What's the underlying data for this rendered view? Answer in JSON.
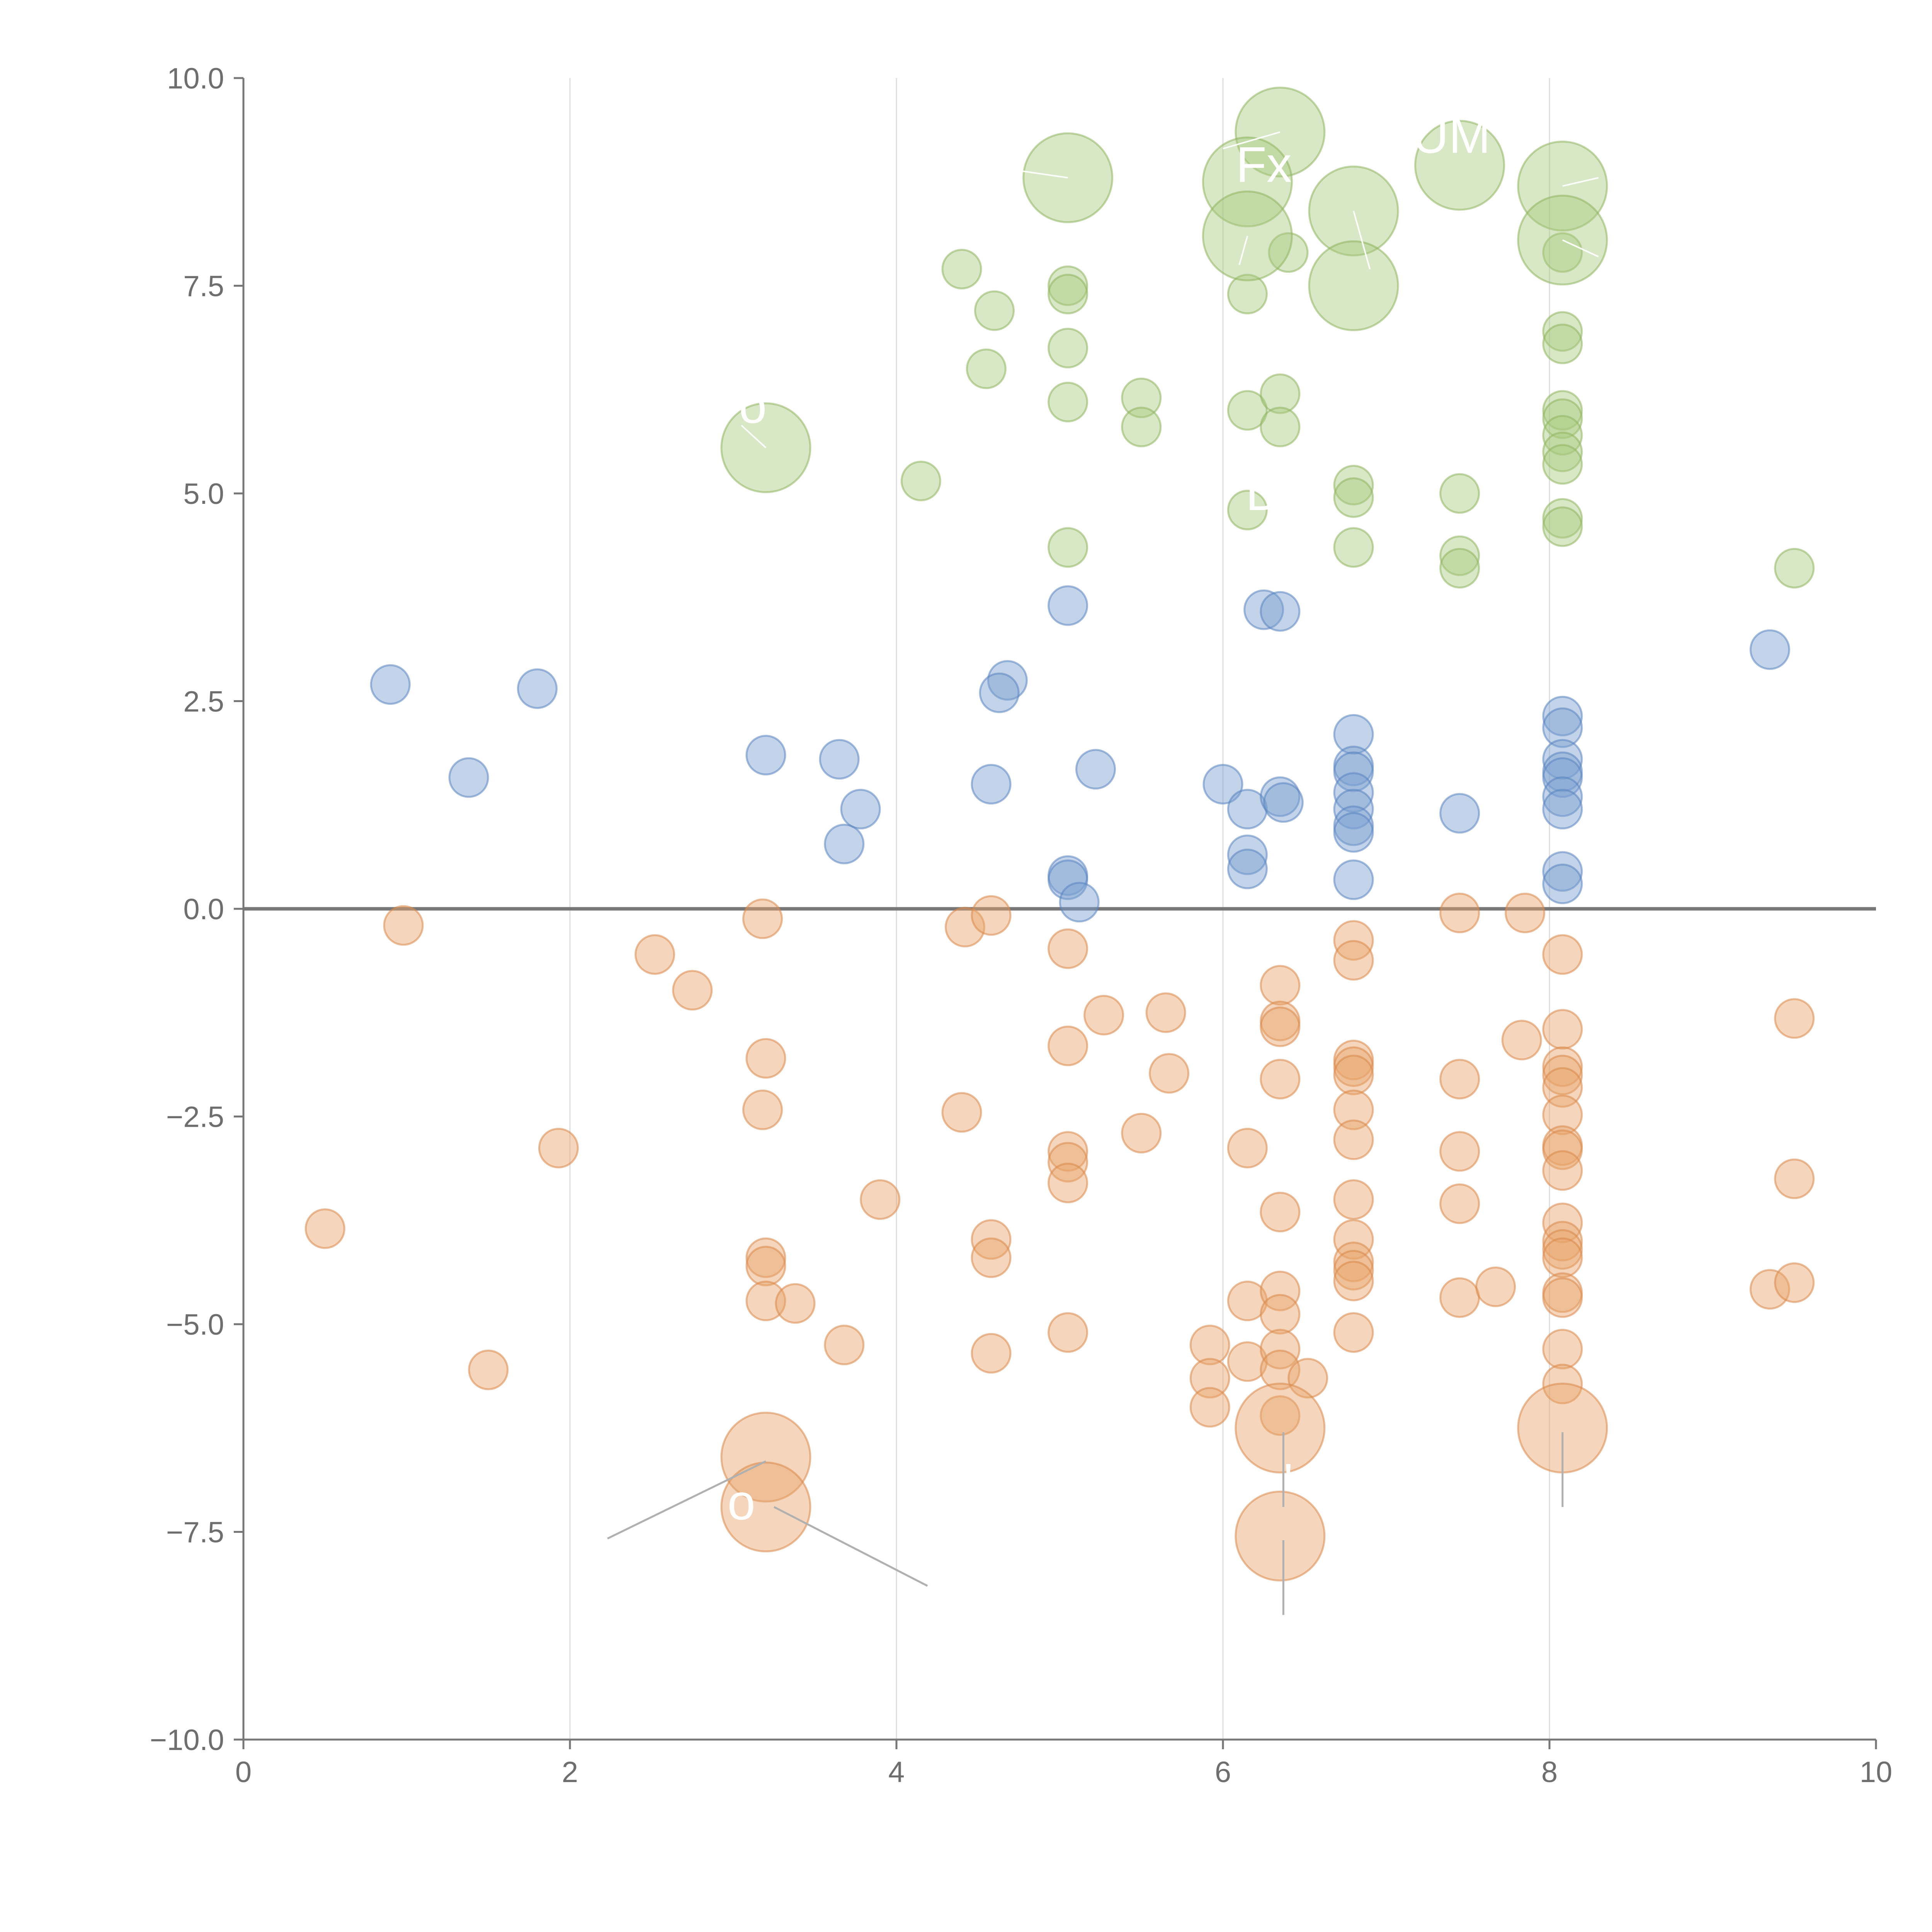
{
  "chart_data": {
    "type": "scatter",
    "title": "",
    "xlabel": "",
    "ylabel": "",
    "xlim": [
      0,
      10
    ],
    "ylim": [
      -10,
      10
    ],
    "x_ticks": [
      0,
      2,
      4,
      6,
      8,
      10
    ],
    "y_ticks": [
      10,
      7.5,
      5,
      2.5,
      0,
      -2.5,
      -5,
      -7.5,
      -10
    ],
    "x_tick_labels": [
      "0",
      "2",
      "4",
      "6",
      "8",
      "10"
    ],
    "y_tick_labels": [
      "10.0",
      "7.5",
      "5.0",
      "2.5",
      "0.0",
      "−2.5",
      "−5.0",
      "−7.5",
      "−10.0"
    ],
    "vertical_gridlines_at": [
      2,
      4,
      6,
      8
    ],
    "horizontal_reference_line_at": 0,
    "colors": {
      "green": "#a9c97e",
      "green_stroke": "#8fb461",
      "blue": "#7b9fd0",
      "blue_stroke": "#5a83bf",
      "orange": "#e9a56b",
      "orange_stroke": "#d9894a",
      "axis": "#777777",
      "grid": "#dddddd",
      "tick_text": "#6e6e6e"
    },
    "series": [
      {
        "name": "green",
        "color_key": "green",
        "points": [
          [
            4.4,
            7.7,
            1
          ],
          [
            4.6,
            7.2,
            1
          ],
          [
            4.55,
            6.5,
            1
          ],
          [
            5.05,
            7.5,
            1
          ],
          [
            5.05,
            7.4,
            1
          ],
          [
            5.05,
            6.75,
            1
          ],
          [
            5.05,
            6.1,
            1
          ],
          [
            5.5,
            6.15,
            1
          ],
          [
            5.5,
            5.8,
            1
          ],
          [
            4.15,
            5.15,
            1
          ],
          [
            5.05,
            4.35,
            1
          ],
          [
            6.15,
            7.4,
            1
          ],
          [
            6.4,
            7.9,
            1
          ],
          [
            6.15,
            6.0,
            1
          ],
          [
            6.35,
            6.2,
            1
          ],
          [
            6.35,
            5.8,
            1
          ],
          [
            6.15,
            4.8,
            1
          ],
          [
            6.8,
            5.1,
            1
          ],
          [
            6.8,
            4.95,
            1
          ],
          [
            6.8,
            4.35,
            1
          ],
          [
            7.45,
            5.0,
            1
          ],
          [
            7.45,
            4.25,
            1
          ],
          [
            7.45,
            4.1,
            1
          ],
          [
            8.08,
            7.9,
            1
          ],
          [
            8.08,
            6.95,
            1
          ],
          [
            8.08,
            6.8,
            1
          ],
          [
            8.08,
            6.0,
            1
          ],
          [
            8.08,
            5.9,
            1
          ],
          [
            8.08,
            5.7,
            1
          ],
          [
            8.08,
            5.5,
            1
          ],
          [
            8.08,
            5.35,
            1
          ],
          [
            8.08,
            4.7,
            1
          ],
          [
            8.08,
            4.6,
            1
          ],
          [
            9.5,
            4.1,
            1
          ],
          [
            3.2,
            5.55,
            2.3
          ],
          [
            5.05,
            8.8,
            2.3
          ],
          [
            6.35,
            9.35,
            2.3
          ],
          [
            6.15,
            8.75,
            2.3
          ],
          [
            6.15,
            8.1,
            2.3
          ],
          [
            6.8,
            8.4,
            2.3
          ],
          [
            6.8,
            7.5,
            2.3
          ],
          [
            7.45,
            8.95,
            2.3
          ],
          [
            8.08,
            8.7,
            2.3
          ],
          [
            8.08,
            8.05,
            2.3
          ]
        ]
      },
      {
        "name": "blue",
        "color_key": "blue",
        "points": [
          [
            0.9,
            2.7,
            1
          ],
          [
            1.8,
            2.65,
            1
          ],
          [
            1.38,
            1.58,
            1
          ],
          [
            3.2,
            1.85,
            1
          ],
          [
            3.65,
            1.8,
            1
          ],
          [
            3.78,
            1.2,
            1
          ],
          [
            3.68,
            0.78,
            1
          ],
          [
            4.58,
            1.5,
            1
          ],
          [
            4.68,
            2.75,
            1
          ],
          [
            4.63,
            2.6,
            1
          ],
          [
            5.05,
            3.65,
            1
          ],
          [
            5.05,
            0.4,
            1
          ],
          [
            5.05,
            0.35,
            1
          ],
          [
            5.12,
            0.08,
            1
          ],
          [
            5.22,
            1.68,
            1
          ],
          [
            6.0,
            1.5,
            1
          ],
          [
            6.15,
            1.2,
            1
          ],
          [
            6.15,
            0.65,
            1
          ],
          [
            6.15,
            0.48,
            1
          ],
          [
            6.25,
            3.6,
            1
          ],
          [
            6.35,
            3.58,
            1
          ],
          [
            6.35,
            1.35,
            1
          ],
          [
            6.37,
            1.28,
            1
          ],
          [
            6.8,
            2.1,
            1
          ],
          [
            6.8,
            1.72,
            1
          ],
          [
            6.8,
            1.65,
            1
          ],
          [
            6.8,
            1.4,
            1
          ],
          [
            6.8,
            1.2,
            1
          ],
          [
            6.8,
            1.0,
            1
          ],
          [
            6.8,
            0.92,
            1
          ],
          [
            6.8,
            0.35,
            1
          ],
          [
            7.45,
            1.15,
            1
          ],
          [
            8.08,
            2.32,
            1
          ],
          [
            8.08,
            2.18,
            1
          ],
          [
            8.08,
            1.8,
            1
          ],
          [
            8.08,
            1.65,
            1
          ],
          [
            8.08,
            1.58,
            1
          ],
          [
            8.08,
            1.35,
            1
          ],
          [
            8.08,
            1.2,
            1
          ],
          [
            8.08,
            0.45,
            1
          ],
          [
            8.08,
            0.3,
            1
          ],
          [
            9.35,
            3.12,
            1
          ]
        ]
      },
      {
        "name": "orange",
        "color_key": "orange",
        "points": [
          [
            0.98,
            -0.2,
            1
          ],
          [
            0.5,
            -3.85,
            1
          ],
          [
            1.5,
            -5.55,
            1
          ],
          [
            1.93,
            -2.88,
            1
          ],
          [
            2.52,
            -0.55,
            1
          ],
          [
            2.75,
            -0.98,
            1
          ],
          [
            3.18,
            -0.12,
            1
          ],
          [
            3.2,
            -1.8,
            1
          ],
          [
            3.18,
            -2.42,
            1
          ],
          [
            3.2,
            -4.2,
            1
          ],
          [
            3.2,
            -4.3,
            1
          ],
          [
            3.2,
            -4.72,
            1
          ],
          [
            3.38,
            -4.75,
            1
          ],
          [
            3.68,
            -5.25,
            1
          ],
          [
            3.9,
            -3.5,
            1
          ],
          [
            4.42,
            -0.22,
            1
          ],
          [
            4.58,
            -0.08,
            1
          ],
          [
            4.4,
            -2.45,
            1
          ],
          [
            4.58,
            -3.98,
            1
          ],
          [
            4.58,
            -4.2,
            1
          ],
          [
            4.58,
            -5.35,
            1
          ],
          [
            5.05,
            -0.48,
            1
          ],
          [
            5.05,
            -1.65,
            1
          ],
          [
            5.05,
            -2.92,
            1
          ],
          [
            5.05,
            -3.05,
            1
          ],
          [
            5.05,
            -3.3,
            1
          ],
          [
            5.05,
            -5.1,
            1
          ],
          [
            5.27,
            -1.28,
            1
          ],
          [
            5.5,
            -2.7,
            1
          ],
          [
            5.65,
            -1.25,
            1
          ],
          [
            5.67,
            -1.98,
            1
          ],
          [
            5.92,
            -5.25,
            1
          ],
          [
            5.92,
            -5.65,
            1
          ],
          [
            5.92,
            -6.0,
            1
          ],
          [
            6.15,
            -2.88,
            1
          ],
          [
            6.15,
            -4.72,
            1
          ],
          [
            6.15,
            -5.45,
            1
          ],
          [
            6.35,
            -0.92,
            1
          ],
          [
            6.35,
            -1.35,
            1
          ],
          [
            6.35,
            -1.42,
            1
          ],
          [
            6.35,
            -2.05,
            1
          ],
          [
            6.35,
            -3.65,
            1
          ],
          [
            6.35,
            -4.6,
            1
          ],
          [
            6.35,
            -4.88,
            1
          ],
          [
            6.35,
            -5.3,
            1
          ],
          [
            6.35,
            -5.55,
            1
          ],
          [
            6.35,
            -6.1,
            1
          ],
          [
            6.52,
            -5.65,
            1
          ],
          [
            6.8,
            -0.38,
            1
          ],
          [
            6.8,
            -0.62,
            1
          ],
          [
            6.8,
            -1.82,
            1
          ],
          [
            6.8,
            -1.9,
            1
          ],
          [
            6.8,
            -2.0,
            1
          ],
          [
            6.8,
            -2.42,
            1
          ],
          [
            6.8,
            -2.78,
            1
          ],
          [
            6.8,
            -3.5,
            1
          ],
          [
            6.8,
            -3.98,
            1
          ],
          [
            6.8,
            -4.25,
            1
          ],
          [
            6.8,
            -4.35,
            1
          ],
          [
            6.8,
            -4.48,
            1
          ],
          [
            6.8,
            -5.1,
            1
          ],
          [
            7.45,
            -0.05,
            1
          ],
          [
            7.45,
            -2.05,
            1
          ],
          [
            7.45,
            -2.92,
            1
          ],
          [
            7.45,
            -3.55,
            1
          ],
          [
            7.45,
            -4.68,
            1
          ],
          [
            7.67,
            -4.55,
            1
          ],
          [
            7.85,
            -0.05,
            1
          ],
          [
            7.83,
            -1.58,
            1
          ],
          [
            8.08,
            -0.55,
            1
          ],
          [
            8.08,
            -1.45,
            1
          ],
          [
            8.08,
            -1.9,
            1
          ],
          [
            8.08,
            -2.0,
            1
          ],
          [
            8.08,
            -2.15,
            1
          ],
          [
            8.08,
            -2.48,
            1
          ],
          [
            8.08,
            -2.85,
            1
          ],
          [
            8.08,
            -2.9,
            1
          ],
          [
            8.08,
            -3.15,
            1
          ],
          [
            8.08,
            -3.78,
            1
          ],
          [
            8.08,
            -4.0,
            1
          ],
          [
            8.08,
            -4.1,
            1
          ],
          [
            8.08,
            -4.2,
            1
          ],
          [
            8.08,
            -4.62,
            1
          ],
          [
            8.08,
            -4.68,
            1
          ],
          [
            8.08,
            -5.3,
            1
          ],
          [
            8.08,
            -5.72,
            1
          ],
          [
            9.5,
            -1.32,
            1
          ],
          [
            9.5,
            -3.25,
            1
          ],
          [
            9.35,
            -4.58,
            1
          ],
          [
            9.5,
            -4.5,
            1
          ],
          [
            3.2,
            -6.6,
            2.3
          ],
          [
            3.2,
            -7.2,
            2.3
          ],
          [
            6.35,
            -6.25,
            2.3
          ],
          [
            6.35,
            -7.55,
            2.3
          ],
          [
            8.08,
            -6.25,
            2.3
          ]
        ]
      }
    ],
    "annotations": [
      {
        "text": "o",
        "x": 3.12,
        "y": 5.85
      },
      {
        "text": "Fx",
        "x": 6.25,
        "y": 8.75
      },
      {
        "text": "UM",
        "x": 7.4,
        "y": 9.1
      },
      {
        "text": "D",
        "x": 6.25,
        "y": 4.8
      },
      {
        "text": "o",
        "x": 3.05,
        "y": -7.35
      },
      {
        "text": "'",
        "x": 6.4,
        "y": -7.1
      },
      {
        "text": ",",
        "x": 8.25,
        "y": 6.9
      }
    ],
    "leader_lines": [
      {
        "from": [
          3.2,
          -6.65
        ],
        "to": [
          2.23,
          -7.58
        ],
        "color": "gray"
      },
      {
        "from": [
          3.25,
          -7.2
        ],
        "to": [
          4.19,
          -8.15
        ],
        "color": "gray"
      },
      {
        "from": [
          6.37,
          -6.3
        ],
        "to": [
          6.37,
          -7.2
        ],
        "color": "gray"
      },
      {
        "from": [
          6.37,
          -7.6
        ],
        "to": [
          6.37,
          -8.5
        ],
        "color": "gray"
      },
      {
        "from": [
          8.08,
          -6.3
        ],
        "to": [
          8.08,
          -7.2
        ],
        "color": "gray"
      },
      {
        "from": [
          3.2,
          5.55
        ],
        "to": [
          3.05,
          5.82
        ],
        "color": "white"
      },
      {
        "from": [
          5.05,
          8.8
        ],
        "to": [
          4.7,
          8.9
        ],
        "color": "white"
      },
      {
        "from": [
          6.15,
          8.1
        ],
        "to": [
          6.1,
          7.75
        ],
        "color": "white"
      },
      {
        "from": [
          6.8,
          8.4
        ],
        "to": [
          6.9,
          7.7
        ],
        "color": "white"
      },
      {
        "from": [
          6.35,
          9.35
        ],
        "to": [
          6.0,
          9.15
        ],
        "color": "white"
      },
      {
        "from": [
          8.08,
          8.7
        ],
        "to": [
          8.3,
          8.8
        ],
        "color": "white"
      },
      {
        "from": [
          8.08,
          8.05
        ],
        "to": [
          8.3,
          7.85
        ],
        "color": "white"
      }
    ]
  }
}
